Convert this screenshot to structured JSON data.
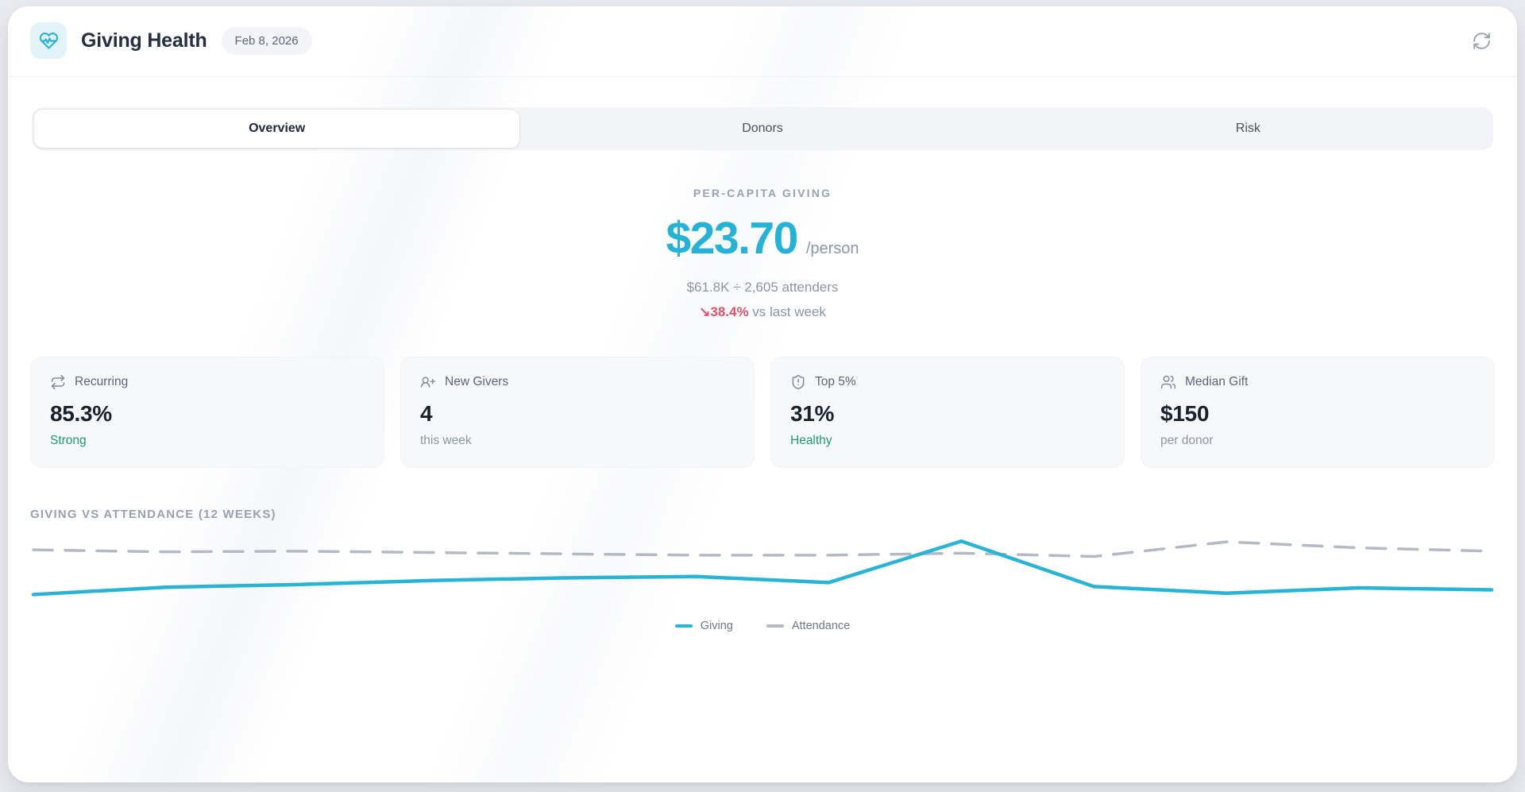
{
  "header": {
    "title": "Giving Health",
    "date_badge": "Feb 8, 2026"
  },
  "tabs": [
    {
      "label": "Overview",
      "active": true
    },
    {
      "label": "Donors",
      "active": false
    },
    {
      "label": "Risk",
      "active": false
    }
  ],
  "hero": {
    "label": "PER-CAPITA GIVING",
    "value": "$23.70",
    "unit": "/person",
    "formula": "$61.8K ÷ 2,605 attenders",
    "delta_arrow": "↘",
    "delta_value": "38.4%",
    "delta_context": "vs last week",
    "delta_direction": "down"
  },
  "stats": [
    {
      "icon": "repeat-icon",
      "label": "Recurring",
      "value": "85.3%",
      "sub": "Strong",
      "sub_tone": "positive"
    },
    {
      "icon": "user-plus-icon",
      "label": "New Givers",
      "value": "4",
      "sub": "this week",
      "sub_tone": "neutral"
    },
    {
      "icon": "shield-alert-icon",
      "label": "Top 5%",
      "value": "31%",
      "sub": "Healthy",
      "sub_tone": "positive"
    },
    {
      "icon": "users-icon",
      "label": "Median Gift",
      "value": "$150",
      "sub": "per donor",
      "sub_tone": "neutral"
    }
  ],
  "chart": {
    "title": "GIVING VS ATTENDANCE (12 WEEKS)"
  },
  "chart_data": {
    "type": "line",
    "title": "Giving vs Attendance (12 weeks)",
    "x": [
      1,
      2,
      3,
      4,
      5,
      6,
      7,
      8,
      9,
      10,
      11,
      12
    ],
    "xlabel": "week",
    "ylabel": "",
    "ylim": [
      0,
      100
    ],
    "grid": false,
    "axes_visible": false,
    "legend_position": "bottom",
    "series": [
      {
        "name": "Giving",
        "color": "#29b4d6",
        "style": "solid",
        "values": [
          9,
          20,
          24,
          30,
          34,
          36,
          27,
          89,
          21,
          11,
          19,
          16
        ]
      },
      {
        "name": "Attendance",
        "color": "#b3bac5",
        "style": "dashed",
        "values": [
          76,
          73,
          74,
          72,
          70,
          68,
          68,
          71,
          66,
          88,
          79,
          74
        ]
      }
    ]
  },
  "colors": {
    "accent_teal": "#29b4d6",
    "negative_red": "#e0516c",
    "positive_green": "#1c9b6c",
    "muted_gray": "#8d96a4",
    "dashed_gray": "#b3bac5"
  }
}
